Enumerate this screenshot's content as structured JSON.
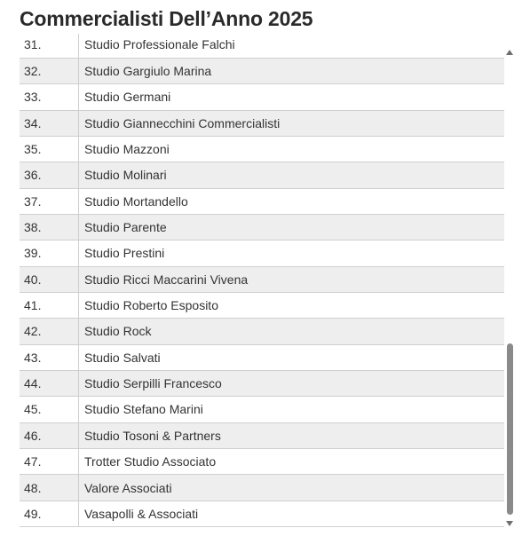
{
  "page": {
    "title": "Commercialisti Dell’Anno 2025"
  },
  "list": {
    "rows": [
      {
        "num": "31.",
        "name": "Studio Professionale Falchi"
      },
      {
        "num": "32.",
        "name": "Studio Gargiulo Marina"
      },
      {
        "num": "33.",
        "name": "Studio Germani"
      },
      {
        "num": "34.",
        "name": "Studio Giannecchini Commercialisti"
      },
      {
        "num": "35.",
        "name": "Studio Mazzoni"
      },
      {
        "num": "36.",
        "name": "Studio Molinari"
      },
      {
        "num": "37.",
        "name": "Studio Mortandello"
      },
      {
        "num": "38.",
        "name": "Studio Parente"
      },
      {
        "num": "39.",
        "name": "Studio Prestini"
      },
      {
        "num": "40.",
        "name": "Studio Ricci Maccarini Vivena"
      },
      {
        "num": "41.",
        "name": "Studio Roberto Esposito"
      },
      {
        "num": "42.",
        "name": "Studio Rock"
      },
      {
        "num": "43.",
        "name": "Studio Salvati"
      },
      {
        "num": "44.",
        "name": "Studio Serpilli Francesco"
      },
      {
        "num": "45.",
        "name": "Studio Stefano Marini"
      },
      {
        "num": "46.",
        "name": "Studio Tosoni & Partners"
      },
      {
        "num": "47.",
        "name": "Trotter Studio Associato"
      },
      {
        "num": "48.",
        "name": "Valore Associati"
      },
      {
        "num": "49.",
        "name": "Vasapolli & Associati"
      }
    ]
  },
  "scrollbar": {
    "thumb_start_fraction": 0.62,
    "thumb_end_fraction": 0.99
  },
  "colors": {
    "row_stripe": "#eeeeee",
    "row_plain": "#ffffff",
    "text": "#333333",
    "title": "#2a2a2a"
  }
}
